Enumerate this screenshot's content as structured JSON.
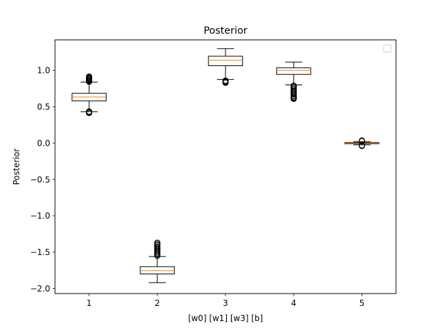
{
  "chart_data": {
    "type": "box",
    "title": "Posterior",
    "xlabel": "[w0] [w1] [w3] [b]",
    "ylabel": "Posterior",
    "xlim": [
      0.5,
      5.5
    ],
    "ylim": [
      -2.07,
      1.42
    ],
    "yticks": [
      1.0,
      0.5,
      0.0,
      -0.5,
      -1.0,
      -1.5,
      -2.0
    ],
    "ytick_labels": [
      "1.0",
      "0.5",
      "0.0",
      "−0.5",
      "−1.0",
      "−1.5",
      "−2.0"
    ],
    "categories": [
      "1",
      "2",
      "3",
      "4",
      "5"
    ],
    "grid": false,
    "legend": {
      "placement": "top-right",
      "entries": []
    },
    "colors": {
      "box": "#000000",
      "median": "#ff7f0e",
      "flier": "#000000"
    },
    "boxes": [
      {
        "x": 1,
        "whisker_low": 0.43,
        "q1": 0.58,
        "median": 0.635,
        "q3": 0.685,
        "whisker_high": 0.84,
        "fliers": [
          0.415,
          0.42,
          0.43,
          0.435,
          0.845,
          0.855,
          0.865,
          0.875,
          0.885,
          0.895,
          0.905,
          0.915
        ]
      },
      {
        "x": 2,
        "whisker_low": -1.92,
        "q1": -1.8,
        "median": -1.755,
        "q3": -1.7,
        "whisker_high": -1.56,
        "fliers": [
          -1.55,
          -1.535,
          -1.52,
          -1.505,
          -1.49,
          -1.475,
          -1.46,
          -1.445,
          -1.43,
          -1.415,
          -1.4,
          -1.385,
          -1.37
        ]
      },
      {
        "x": 3,
        "whisker_low": 0.875,
        "q1": 1.065,
        "median": 1.14,
        "q3": 1.195,
        "whisker_high": 1.3,
        "fliers": [
          0.83,
          0.84,
          0.85,
          0.86
        ]
      },
      {
        "x": 4,
        "whisker_low": 0.8,
        "q1": 0.945,
        "median": 1.0,
        "q3": 1.035,
        "whisker_high": 1.115,
        "fliers": [
          0.61,
          0.62,
          0.63,
          0.645,
          0.66,
          0.675,
          0.69,
          0.705,
          0.72,
          0.735,
          0.75,
          0.765,
          0.78,
          0.79
        ]
      },
      {
        "x": 5,
        "whisker_low": -0.025,
        "q1": -0.008,
        "median": 0.0,
        "q3": 0.008,
        "whisker_high": 0.02,
        "fliers": [
          -0.04,
          -0.03,
          0.025,
          0.035
        ]
      }
    ]
  }
}
